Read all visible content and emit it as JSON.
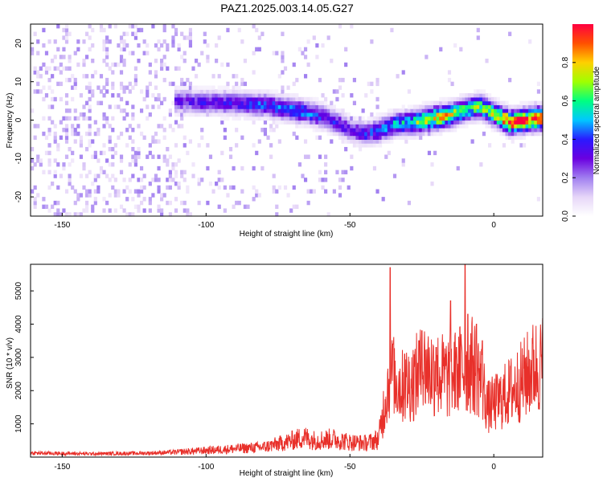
{
  "title": "PAZ1.2025.003.14.05.G27",
  "colors": {
    "snr_line": "#e8302a",
    "axis": "#000000",
    "background": "#ffffff",
    "colormap": [
      "#ffffff",
      "#e6d6f8",
      "#a07ef0",
      "#6a00e0",
      "#2a1aff",
      "#00c8ff",
      "#00ff80",
      "#a0ff00",
      "#ffd000",
      "#ff5000",
      "#ff0040"
    ]
  },
  "chart_data": [
    {
      "type": "heatmap",
      "title": "PAZ1.2025.003.14.05.G27",
      "xlabel": "Height of straight line (km)",
      "ylabel": "Frequency (Hz)",
      "xlim": [
        -161,
        17
      ],
      "ylim": [
        -25,
        25
      ],
      "xticks": [
        -150,
        -100,
        -50,
        0
      ],
      "yticks": [
        -20,
        -10,
        0,
        10,
        20
      ],
      "colorbar": {
        "label": "Normalized spectral amplitude",
        "range": [
          0.0,
          1.0
        ],
        "ticks": [
          "0.0",
          "0.2",
          "0.4",
          "0.6",
          "0.8"
        ]
      },
      "ridge_frequency": [
        {
          "x": -108,
          "y": 4.5
        },
        {
          "x": -100,
          "y": 4.2
        },
        {
          "x": -90,
          "y": 4.0
        },
        {
          "x": -80,
          "y": 3.5
        },
        {
          "x": -72,
          "y": 2.5
        },
        {
          "x": -65,
          "y": 1.5
        },
        {
          "x": -58,
          "y": 0.0
        },
        {
          "x": -50,
          "y": -3.0
        },
        {
          "x": -45,
          "y": -4.0
        },
        {
          "x": -40,
          "y": -3.0
        },
        {
          "x": -35,
          "y": -1.5
        },
        {
          "x": -28,
          "y": -1.0
        },
        {
          "x": -22,
          "y": 0.0
        },
        {
          "x": -15,
          "y": 1.0
        },
        {
          "x": -10,
          "y": 2.5
        },
        {
          "x": -5,
          "y": 3.0
        },
        {
          "x": 0,
          "y": 1.0
        },
        {
          "x": 5,
          "y": -1.0
        },
        {
          "x": 10,
          "y": -0.5
        },
        {
          "x": 15,
          "y": 0.0
        }
      ],
      "ridge_amplitude": [
        {
          "x": -108,
          "v": 0.3
        },
        {
          "x": -90,
          "v": 0.35
        },
        {
          "x": -70,
          "v": 0.45
        },
        {
          "x": -50,
          "v": 0.3
        },
        {
          "x": -30,
          "v": 0.55
        },
        {
          "x": -20,
          "v": 0.8
        },
        {
          "x": -10,
          "v": 0.6
        },
        {
          "x": 0,
          "v": 0.7
        },
        {
          "x": 5,
          "v": 0.95
        },
        {
          "x": 15,
          "v": 0.9
        }
      ]
    },
    {
      "type": "line",
      "xlabel": "Height of straight line (km)",
      "ylabel": "SNR (10 * v/v)",
      "xlim": [
        -161,
        17
      ],
      "ylim": [
        0,
        5800
      ],
      "xticks": [
        -150,
        -100,
        -50,
        0
      ],
      "yticks": [
        1000,
        2000,
        3000,
        4000,
        5000
      ],
      "envelope": [
        {
          "x": -160,
          "y": 120
        },
        {
          "x": -150,
          "y": 110
        },
        {
          "x": -140,
          "y": 100
        },
        {
          "x": -130,
          "y": 110
        },
        {
          "x": -120,
          "y": 120
        },
        {
          "x": -110,
          "y": 150
        },
        {
          "x": -100,
          "y": 200
        },
        {
          "x": -90,
          "y": 250
        },
        {
          "x": -80,
          "y": 300
        },
        {
          "x": -72,
          "y": 450
        },
        {
          "x": -66,
          "y": 600
        },
        {
          "x": -62,
          "y": 500
        },
        {
          "x": -56,
          "y": 550
        },
        {
          "x": -50,
          "y": 450
        },
        {
          "x": -44,
          "y": 420
        },
        {
          "x": -40,
          "y": 550
        },
        {
          "x": -38,
          "y": 1600
        },
        {
          "x": -36,
          "y": 2500
        },
        {
          "x": -32,
          "y": 2100
        },
        {
          "x": -28,
          "y": 2300
        },
        {
          "x": -24,
          "y": 2700
        },
        {
          "x": -20,
          "y": 2500
        },
        {
          "x": -16,
          "y": 2400
        },
        {
          "x": -12,
          "y": 2600
        },
        {
          "x": -8,
          "y": 2800
        },
        {
          "x": -5,
          "y": 2500
        },
        {
          "x": -2,
          "y": 1500
        },
        {
          "x": 2,
          "y": 1700
        },
        {
          "x": 6,
          "y": 2000
        },
        {
          "x": 10,
          "y": 2300
        },
        {
          "x": 14,
          "y": 2700
        },
        {
          "x": 17,
          "y": 2800
        }
      ],
      "peaks": [
        {
          "x": -36,
          "y": 5700
        },
        {
          "x": -35,
          "y": 3400
        },
        {
          "x": -31,
          "y": 3100
        },
        {
          "x": -26,
          "y": 3500
        },
        {
          "x": -25,
          "y": 3800
        },
        {
          "x": -20,
          "y": 3300
        },
        {
          "x": -15,
          "y": 4700
        },
        {
          "x": -13,
          "y": 3300
        },
        {
          "x": -10,
          "y": 5900
        },
        {
          "x": -9,
          "y": 4300
        },
        {
          "x": -6,
          "y": 4000
        },
        {
          "x": -4,
          "y": 3500
        }
      ]
    }
  ]
}
